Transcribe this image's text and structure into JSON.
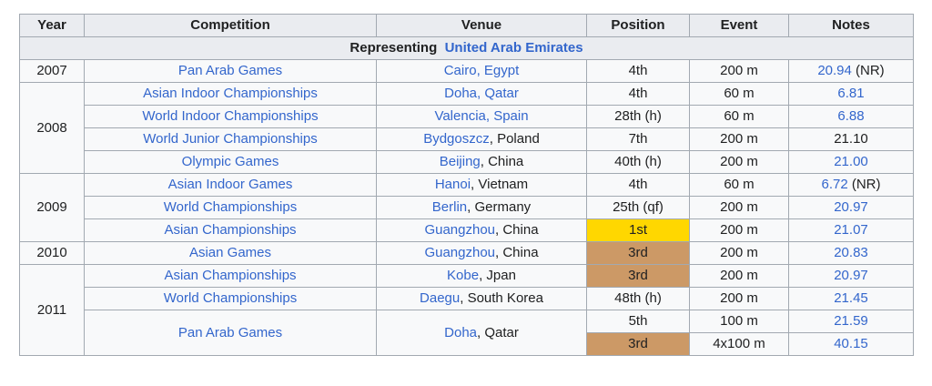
{
  "headers": [
    "Year",
    "Competition",
    "Venue",
    "Position",
    "Event",
    "Notes"
  ],
  "representing": {
    "label": "Representing",
    "country": "United Arab Emirates"
  },
  "rows": [
    {
      "year": "2007",
      "competition": "Pan Arab Games",
      "venue_link": "Cairo, Egypt",
      "venue_rest": "",
      "position": "4th",
      "event": "200 m",
      "notes_link": "20.94",
      "notes_text": " (NR)"
    },
    {
      "year": "2008",
      "competition": "Asian Indoor Championships",
      "venue_link": "Doha, Qatar",
      "venue_rest": "",
      "position": "4th",
      "event": "60 m",
      "notes_link": "6.81",
      "notes_text": ""
    },
    {
      "competition": "World Indoor Championships",
      "venue_link": "Valencia, Spain",
      "venue_rest": "",
      "position": "28th (h)",
      "event": "60 m",
      "notes_link": "6.88",
      "notes_text": ""
    },
    {
      "competition": "World Junior Championships",
      "venue_link": "Bydgoszcz",
      "venue_rest": ", Poland",
      "position": "7th",
      "event": "200 m",
      "notes_link": "",
      "notes_text": "21.10"
    },
    {
      "competition": "Olympic Games",
      "venue_link": "Beijing",
      "venue_rest": ", China",
      "position": "40th (h)",
      "event": "200 m",
      "notes_link": "21.00",
      "notes_text": ""
    },
    {
      "year": "2009",
      "competition": "Asian Indoor Games",
      "venue_link": "Hanoi",
      "venue_rest": ", Vietnam",
      "position": "4th",
      "event": "60 m",
      "notes_link": "6.72",
      "notes_text": " (NR)"
    },
    {
      "competition": "World Championships",
      "venue_link": "Berlin",
      "venue_rest": ", Germany",
      "position": "25th (qf)",
      "event": "200 m",
      "notes_link": "20.97",
      "notes_text": ""
    },
    {
      "competition": "Asian Championships",
      "venue_link": "Guangzhou",
      "venue_rest": ", China",
      "position": "1st",
      "event": "200 m",
      "notes_link": "21.07",
      "notes_text": ""
    },
    {
      "year": "2010",
      "competition": "Asian Games",
      "venue_link": "Guangzhou",
      "venue_rest": ", China",
      "position": "3rd",
      "event": "200 m",
      "notes_link": "20.83",
      "notes_text": ""
    },
    {
      "year": "2011",
      "competition": "Asian Championships",
      "venue_link": "Kobe",
      "venue_rest": ", Jpan",
      "position": "3rd",
      "event": "200 m",
      "notes_link": "20.97",
      "notes_text": ""
    },
    {
      "competition": "World Championships",
      "venue_link": "Daegu",
      "venue_rest": ", South Korea",
      "position": "48th (h)",
      "event": "200 m",
      "notes_link": "21.45",
      "notes_text": ""
    },
    {
      "competition": "Pan Arab Games",
      "venue_link": "Doha",
      "venue_rest": ", Qatar",
      "position": "5th",
      "event": "100 m",
      "notes_link": "21.59",
      "notes_text": ""
    },
    {
      "position": "3rd",
      "event": "4x100 m",
      "notes_link": "40.15",
      "notes_text": ""
    }
  ],
  "medal_colors": {
    "gold": "#ffd700",
    "bronze": "#cc9966"
  },
  "link_color": "#3366cc"
}
